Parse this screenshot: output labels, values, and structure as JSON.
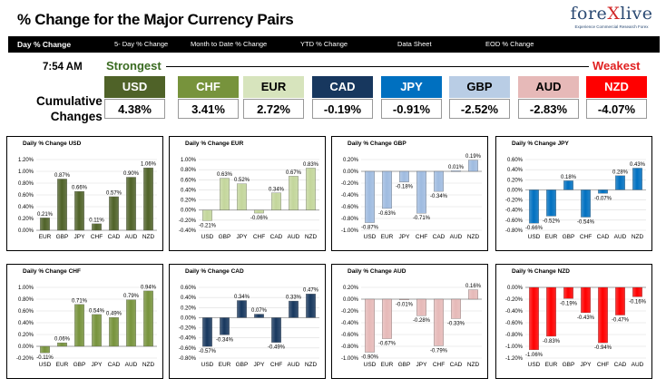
{
  "header": {
    "title": "% Change for the Major Currency Pairs",
    "logo_name": "forexlive",
    "logo_tagline": "Experience Commercial Research Forex"
  },
  "tabs": [
    {
      "label": "Day % Change"
    },
    {
      "label": "5- Day % Change"
    },
    {
      "label": "Month to Date % Change"
    },
    {
      "label": "YTD % Change"
    },
    {
      "label": "Data Sheet"
    },
    {
      "label": "EOD % Change"
    }
  ],
  "summary": {
    "time": "7:54 AM",
    "strongest_label": "Strongest",
    "weakest_label": "Weakest",
    "cumulative_label_1": "Cumulative",
    "cumulative_label_2": "Changes",
    "currencies": [
      {
        "name": "USD",
        "value": "4.38%",
        "bg": "#4f6228",
        "fg": "#ffffff"
      },
      {
        "name": "CHF",
        "value": "3.41%",
        "bg": "#77933c",
        "fg": "#ffffff"
      },
      {
        "name": "EUR",
        "value": "2.72%",
        "bg": "#d7e4bd",
        "fg": "#000000"
      },
      {
        "name": "CAD",
        "value": "-0.19%",
        "bg": "#17375e",
        "fg": "#ffffff"
      },
      {
        "name": "JPY",
        "value": "-0.91%",
        "bg": "#0070c0",
        "fg": "#ffffff"
      },
      {
        "name": "GBP",
        "value": "-2.52%",
        "bg": "#b9cde5",
        "fg": "#000000"
      },
      {
        "name": "AUD",
        "value": "-2.83%",
        "bg": "#e6b9b8",
        "fg": "#000000"
      },
      {
        "name": "NZD",
        "value": "-4.07%",
        "bg": "#ff0000",
        "fg": "#ffffff"
      }
    ]
  },
  "chart_data": [
    {
      "type": "bar",
      "title": "Daily % Change USD",
      "color": "#4f6228",
      "categories": [
        "EUR",
        "GBP",
        "JPY",
        "CHF",
        "CAD",
        "AUD",
        "NZD"
      ],
      "values": [
        0.21,
        0.87,
        0.66,
        0.11,
        0.57,
        0.9,
        1.06
      ],
      "labels": [
        "0.21%",
        "0.87%",
        "0.66%",
        "0.11%",
        "0.57%",
        "0.90%",
        "1.06%"
      ],
      "ylim": [
        0,
        1.2
      ],
      "yticks": [
        0,
        0.2,
        0.4,
        0.6,
        0.8,
        1.0,
        1.2
      ],
      "ytick_labels": [
        "0.00%",
        "0.20%",
        "0.40%",
        "0.60%",
        "0.80%",
        "1.00%",
        "1.20%"
      ]
    },
    {
      "type": "bar",
      "title": "Daily % Change EUR",
      "color": "#c3d69b",
      "categories": [
        "USD",
        "GBP",
        "JPY",
        "CHF",
        "CAD",
        "AUD",
        "NZD"
      ],
      "values": [
        -0.21,
        0.63,
        0.52,
        -0.06,
        0.34,
        0.67,
        0.83
      ],
      "labels": [
        "-0.21%",
        "0.63%",
        "0.52%",
        "-0.06%",
        "0.34%",
        "0.67%",
        "0.83%"
      ],
      "ylim": [
        -0.4,
        1.0
      ],
      "yticks": [
        -0.4,
        -0.2,
        0,
        0.2,
        0.4,
        0.6,
        0.8,
        1.0
      ],
      "ytick_labels": [
        "-0.40%",
        "-0.20%",
        "0.00%",
        "0.20%",
        "0.40%",
        "0.60%",
        "0.80%",
        "1.00%"
      ]
    },
    {
      "type": "bar",
      "title": "Daily % Change GBP",
      "color": "#9fbbe0",
      "categories": [
        "USD",
        "EUR",
        "JPY",
        "CHF",
        "CAD",
        "AUD",
        "NZD"
      ],
      "values": [
        -0.87,
        -0.63,
        -0.18,
        -0.71,
        -0.34,
        0.01,
        0.19
      ],
      "labels": [
        "-0.87%",
        "-0.63%",
        "-0.18%",
        "-0.71%",
        "-0.34%",
        "0.01%",
        "0.19%"
      ],
      "ylim": [
        -1.0,
        0.2
      ],
      "yticks": [
        -1.0,
        -0.8,
        -0.6,
        -0.4,
        -0.2,
        0,
        0.2
      ],
      "ytick_labels": [
        "-1.00%",
        "-0.80%",
        "-0.60%",
        "-0.40%",
        "-0.20%",
        "0.00%",
        "0.20%"
      ]
    },
    {
      "type": "bar",
      "title": "Daily % Change JPY",
      "color": "#0070c0",
      "categories": [
        "USD",
        "EUR",
        "GBP",
        "CHF",
        "CAD",
        "AUD",
        "NZD"
      ],
      "values": [
        -0.66,
        -0.52,
        0.18,
        -0.54,
        -0.07,
        0.28,
        0.43
      ],
      "labels": [
        "-0.66%",
        "-0.52%",
        "0.18%",
        "-0.54%",
        "-0.07%",
        "0.28%",
        "0.43%"
      ],
      "ylim": [
        -0.8,
        0.6
      ],
      "yticks": [
        -0.8,
        -0.6,
        -0.4,
        -0.2,
        0,
        0.2,
        0.4,
        0.6
      ],
      "ytick_labels": [
        "-0.80%",
        "-0.60%",
        "-0.40%",
        "-0.20%",
        "0.00%",
        "0.20%",
        "0.40%",
        "0.60%"
      ]
    },
    {
      "type": "bar",
      "title": "Daily % Change CHF",
      "color": "#77933c",
      "categories": [
        "USD",
        "EUR",
        "GBP",
        "JPY",
        "CAD",
        "AUD",
        "NZD"
      ],
      "values": [
        -0.11,
        0.06,
        0.71,
        0.54,
        0.49,
        0.79,
        0.94
      ],
      "labels": [
        "-0.11%",
        "0.06%",
        "0.71%",
        "0.54%",
        "0.49%",
        "0.79%",
        "0.94%"
      ],
      "ylim": [
        -0.2,
        1.0
      ],
      "yticks": [
        -0.2,
        0,
        0.2,
        0.4,
        0.6,
        0.8,
        1.0
      ],
      "ytick_labels": [
        "-0.20%",
        "0.00%",
        "0.20%",
        "0.40%",
        "0.60%",
        "0.80%",
        "1.00%"
      ]
    },
    {
      "type": "bar",
      "title": "Daily % Change CAD",
      "color": "#17375e",
      "categories": [
        "USD",
        "EUR",
        "GBP",
        "JPY",
        "CHF",
        "AUD",
        "NZD"
      ],
      "values": [
        -0.57,
        -0.34,
        0.34,
        0.07,
        -0.49,
        0.33,
        0.47
      ],
      "labels": [
        "-0.57%",
        "-0.34%",
        "0.34%",
        "0.07%",
        "-0.49%",
        "0.33%",
        "0.47%"
      ],
      "ylim": [
        -0.8,
        0.6
      ],
      "yticks": [
        -0.8,
        -0.6,
        -0.4,
        -0.2,
        0,
        0.2,
        0.4,
        0.6
      ],
      "ytick_labels": [
        "-0.80%",
        "-0.60%",
        "-0.40%",
        "-0.20%",
        "0.00%",
        "0.20%",
        "0.40%",
        "0.60%"
      ]
    },
    {
      "type": "bar",
      "title": "Daily % Change AUD",
      "color": "#e6b9b8",
      "categories": [
        "USD",
        "EUR",
        "GBP",
        "JPY",
        "CHF",
        "CAD",
        "NZD"
      ],
      "values": [
        -0.9,
        -0.67,
        -0.01,
        -0.28,
        -0.79,
        -0.33,
        0.16
      ],
      "labels": [
        "-0.90%",
        "-0.67%",
        "-0.01%",
        "-0.28%",
        "-0.79%",
        "-0.33%",
        "0.16%"
      ],
      "ylim": [
        -1.0,
        0.2
      ],
      "yticks": [
        -1.0,
        -0.8,
        -0.6,
        -0.4,
        -0.2,
        0,
        0.2
      ],
      "ytick_labels": [
        "-1.00%",
        "-0.80%",
        "-0.60%",
        "-0.40%",
        "-0.20%",
        "0.00%",
        "0.20%"
      ]
    },
    {
      "type": "bar",
      "title": "Daily % Change NZD",
      "color": "#ff0000",
      "categories": [
        "USD",
        "EUR",
        "GBP",
        "JPY",
        "CHF",
        "CAD",
        "AUD"
      ],
      "values": [
        -1.06,
        -0.83,
        -0.19,
        -0.43,
        -0.94,
        -0.47,
        -0.16
      ],
      "labels": [
        "-1.06%",
        "-0.83%",
        "-0.19%",
        "-0.43%",
        "-0.94%",
        "-0.47%",
        "-0.16%"
      ],
      "ylim": [
        -1.2,
        0
      ],
      "yticks": [
        -1.2,
        -1.0,
        -0.8,
        -0.6,
        -0.4,
        -0.2,
        0
      ],
      "ytick_labels": [
        "-1.20%",
        "-1.00%",
        "-0.80%",
        "-0.60%",
        "-0.40%",
        "-0.20%",
        "0.00%"
      ]
    }
  ]
}
